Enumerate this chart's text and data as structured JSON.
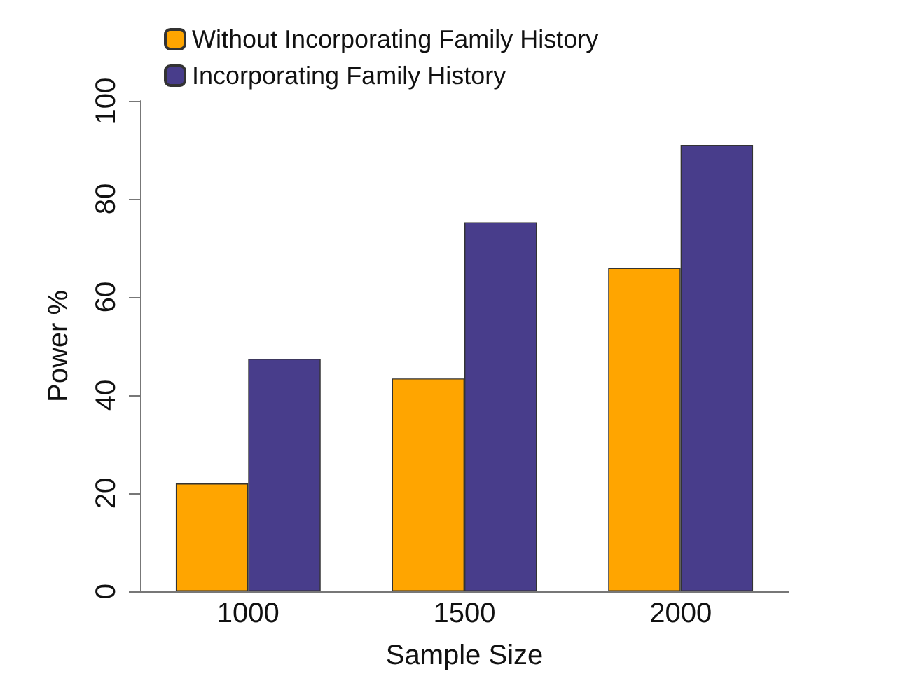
{
  "chart_data": {
    "type": "bar",
    "xlabel": "Sample Size",
    "ylabel": "Power %",
    "categories": [
      "1000",
      "1500",
      "2000"
    ],
    "series": [
      {
        "name": "Without Incorporating Family History",
        "color": "#ffa500",
        "values": [
          22.0,
          43.4,
          65.9
        ]
      },
      {
        "name": "Incorporating Family History",
        "color": "#483d8b",
        "values": [
          47.4,
          75.2,
          91.0
        ]
      }
    ],
    "ylim": [
      0,
      100
    ],
    "yticks": [
      0,
      20,
      40,
      60,
      80,
      100
    ],
    "grid": false,
    "legend": "top left"
  }
}
